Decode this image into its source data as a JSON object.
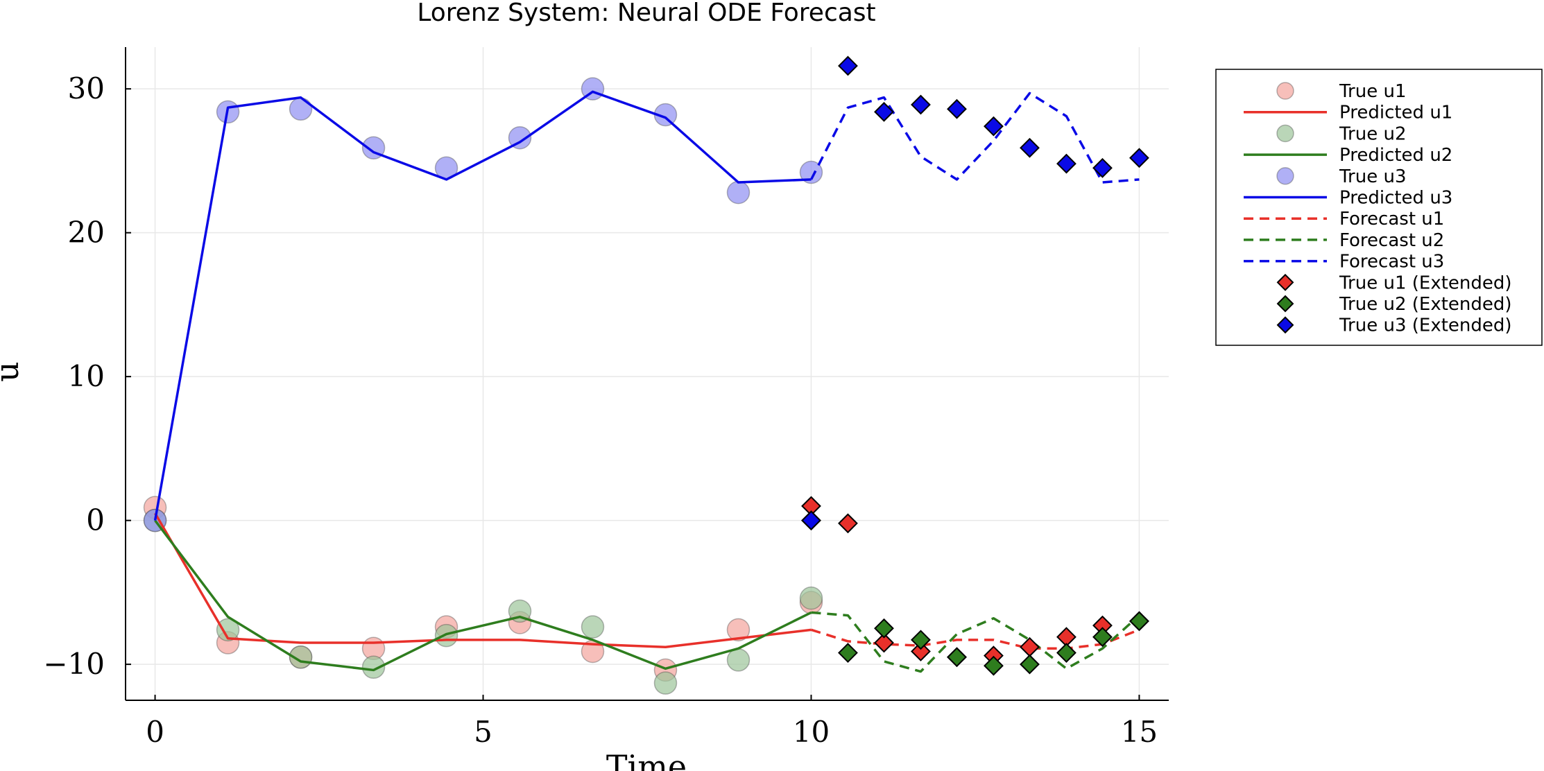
{
  "chart_data": {
    "type": "line",
    "title": "Lorenz System: Neural ODE Forecast",
    "xlabel": "Time",
    "ylabel": "u",
    "xlim": [
      -0.45,
      15.45
    ],
    "ylim": [
      -12.5,
      32.9
    ],
    "xticks": [
      0,
      5,
      10,
      15
    ],
    "xtick_labels": [
      "0",
      "5",
      "10",
      "15"
    ],
    "yticks": [
      -10,
      0,
      10,
      20,
      30
    ],
    "ytick_labels": [
      "−10",
      "0",
      "10",
      "20",
      "30"
    ],
    "grid": true,
    "legend_position": "outside-right-top",
    "training_times": [
      0,
      1.11,
      2.22,
      3.33,
      4.44,
      5.56,
      6.67,
      7.78,
      8.89,
      10.0
    ],
    "forecast_times": [
      10.0,
      10.56,
      11.11,
      11.67,
      12.22,
      12.78,
      13.33,
      13.89,
      14.44,
      15.0
    ],
    "series": [
      {
        "name": "True u1",
        "kind": "scatter-circle",
        "color": "#f4a49c",
        "values": [
          0.9,
          -8.5,
          -9.5,
          -8.9,
          -7.4,
          -7.1,
          -9.1,
          -10.4,
          -7.6,
          -5.7
        ]
      },
      {
        "name": "Predicted u1",
        "kind": "line",
        "color": "#e8302a",
        "values": [
          0.5,
          -8.2,
          -8.5,
          -8.5,
          -8.3,
          -8.3,
          -8.6,
          -8.8,
          -8.2,
          -7.6
        ]
      },
      {
        "name": "True u2",
        "kind": "scatter-circle",
        "color": "#9dc49a",
        "values": [
          0.0,
          -7.6,
          -9.5,
          -10.2,
          -8.0,
          -6.3,
          -7.4,
          -11.3,
          -9.7,
          -5.4
        ]
      },
      {
        "name": "Predicted u2",
        "kind": "line",
        "color": "#2e7d1e",
        "values": [
          0.0,
          -6.7,
          -9.8,
          -10.4,
          -7.9,
          -6.7,
          -8.3,
          -10.3,
          -8.9,
          -6.4
        ]
      },
      {
        "name": "True u3",
        "kind": "scatter-circle",
        "color": "#8f8ff2",
        "values": [
          0.0,
          28.4,
          28.6,
          25.9,
          24.5,
          26.6,
          30.0,
          28.2,
          22.8,
          24.2
        ]
      },
      {
        "name": "Predicted u3",
        "kind": "line",
        "color": "#0a0ae6",
        "values": [
          0.0,
          28.7,
          29.4,
          25.6,
          23.7,
          26.3,
          29.8,
          28.0,
          23.5,
          23.7
        ]
      },
      {
        "name": "Forecast u1",
        "kind": "dashed",
        "color": "#e8302a",
        "values": [
          -7.6,
          -8.4,
          -8.6,
          -8.7,
          -8.3,
          -8.3,
          -8.9,
          -8.9,
          -8.6,
          -7.6
        ]
      },
      {
        "name": "Forecast u2",
        "kind": "dashed",
        "color": "#2e7d1e",
        "values": [
          -6.4,
          -6.6,
          -9.8,
          -10.5,
          -7.9,
          -6.8,
          -8.3,
          -10.3,
          -8.9,
          -6.6
        ]
      },
      {
        "name": "Forecast u3",
        "kind": "dashed",
        "color": "#0a0ae6",
        "values": [
          23.7,
          28.7,
          29.4,
          25.3,
          23.7,
          26.4,
          29.7,
          28.1,
          23.5,
          23.7
        ]
      },
      {
        "name": "True u1 (Extended)",
        "kind": "scatter-diamond",
        "color": "#e8302a",
        "values": [
          1.0,
          -0.2,
          -8.5,
          -9.1,
          -9.5,
          -9.4,
          -8.8,
          -8.1,
          -7.3,
          -7.0
        ]
      },
      {
        "name": "True u2 (Extended)",
        "kind": "scatter-diamond",
        "color": "#2e7d1e",
        "values": [
          0.0,
          -9.2,
          -7.5,
          -8.3,
          -9.5,
          -10.1,
          -10.0,
          -9.2,
          -8.1,
          -7.0
        ]
      },
      {
        "name": "True u3 (Extended)",
        "kind": "scatter-diamond",
        "color": "#0a0ae6",
        "values": [
          0.0,
          31.6,
          28.4,
          28.9,
          28.6,
          27.4,
          25.9,
          24.8,
          24.5,
          25.2
        ]
      }
    ]
  }
}
